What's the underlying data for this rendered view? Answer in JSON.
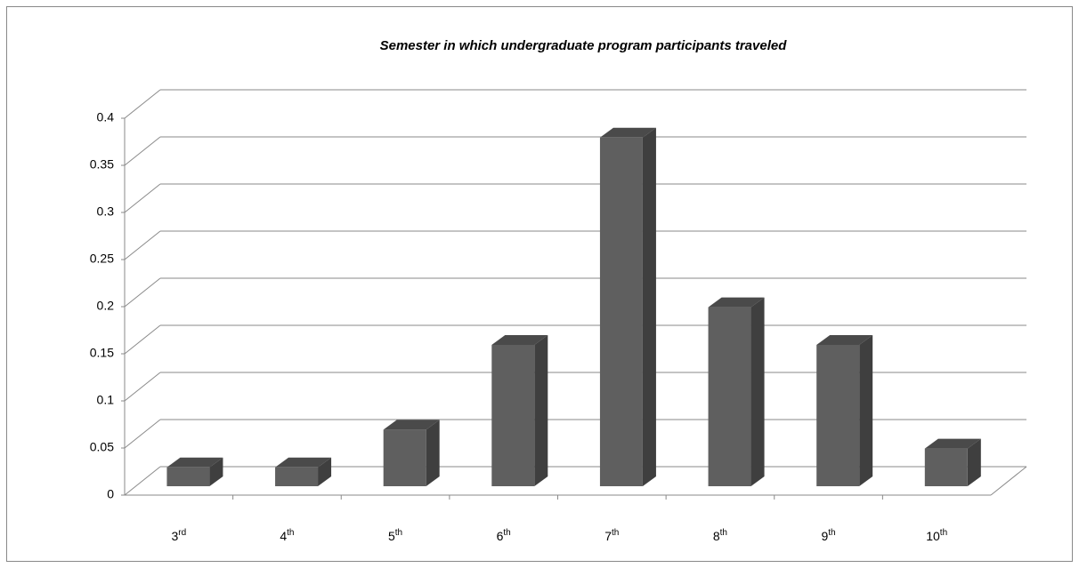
{
  "chart_data": {
    "type": "bar3d",
    "title": "Semester in which undergraduate program participants traveled",
    "categories": [
      "3rd",
      "4th",
      "5th",
      "6th",
      "7th",
      "8th",
      "9th",
      "10th"
    ],
    "values": [
      0.02,
      0.02,
      0.06,
      0.15,
      0.37,
      0.19,
      0.15,
      0.04
    ],
    "color": "#5f5f5f",
    "ylim": [
      0,
      0.4
    ],
    "yticks": [
      0,
      0.05,
      0.1,
      0.15,
      0.2,
      0.25,
      0.3,
      0.35,
      0.4
    ],
    "grid": true
  }
}
